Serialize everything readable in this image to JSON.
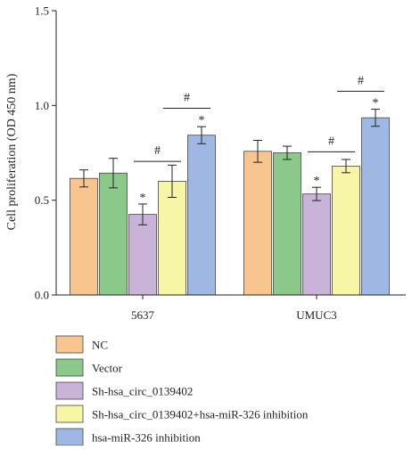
{
  "chart_data": {
    "type": "bar",
    "title": "",
    "xlabel": "",
    "ylabel": "Cell proliferation (OD 450 nm)",
    "ylim": [
      0,
      1.5
    ],
    "yticks": [
      "0.0",
      "0.5",
      "1.0",
      "1.5"
    ],
    "ytick_values": [
      0.0,
      0.5,
      1.0,
      1.5
    ],
    "categories": [
      "5637",
      "UMUC3"
    ],
    "legend_position": "bottom",
    "series": [
      {
        "name": "NC",
        "color": "#f9c58e",
        "values": [
          0.615,
          0.758
        ],
        "errors": [
          0.045,
          0.058
        ]
      },
      {
        "name": "Vector",
        "color": "#8ac98a",
        "values": [
          0.643,
          0.75
        ],
        "errors": [
          0.078,
          0.035
        ]
      },
      {
        "name": "Sh-hsa_circ_0139402",
        "color": "#c9b3d9",
        "values": [
          0.425,
          0.533
        ],
        "errors": [
          0.055,
          0.035
        ]
      },
      {
        "name": "Sh-hsa_circ_0139402+hsa-miR-326 inhibition",
        "color": "#f7f5a6",
        "values": [
          0.6,
          0.68
        ],
        "errors": [
          0.085,
          0.035
        ]
      },
      {
        "name": "hsa-miR-326 inhibition",
        "color": "#9fb8e3",
        "values": [
          0.843,
          0.935
        ],
        "errors": [
          0.045,
          0.045
        ]
      }
    ],
    "stars": [
      {
        "category": 0,
        "series": 2,
        "text": "*"
      },
      {
        "category": 0,
        "series": 4,
        "text": "*"
      },
      {
        "category": 1,
        "series": 2,
        "text": "*"
      },
      {
        "category": 1,
        "series": 4,
        "text": "*"
      }
    ],
    "comparisons": [
      {
        "category": 0,
        "from": 2,
        "to": 3,
        "y": 0.705,
        "text": "#"
      },
      {
        "category": 0,
        "from": 3,
        "to": 4,
        "y": 0.985,
        "text": "#"
      },
      {
        "category": 1,
        "from": 2,
        "to": 3,
        "y": 0.755,
        "text": "#"
      },
      {
        "category": 1,
        "from": 3,
        "to": 4,
        "y": 1.075,
        "text": "#"
      }
    ]
  }
}
